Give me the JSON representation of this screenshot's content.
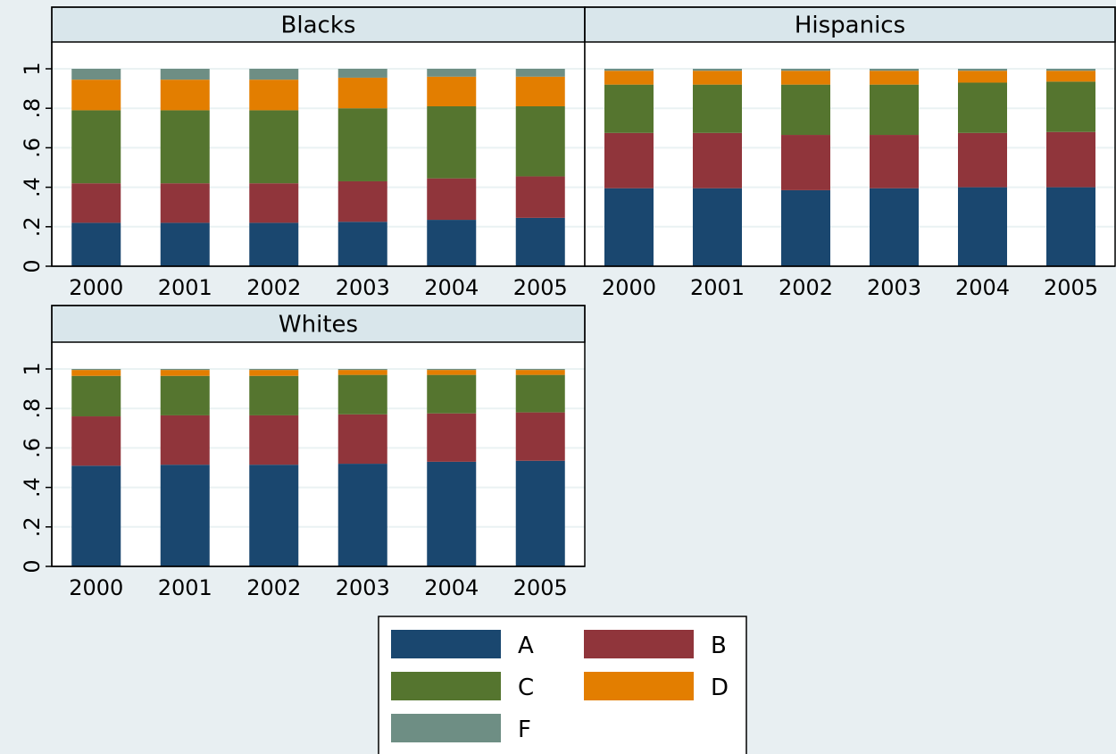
{
  "chart_data": [
    {
      "type": "bar",
      "stacked": true,
      "title": "Blacks",
      "categories": [
        "2000",
        "2001",
        "2002",
        "2003",
        "2004",
        "2005"
      ],
      "ylim": [
        0,
        1
      ],
      "yticks": [
        "0",
        ".2",
        ".4",
        ".6",
        ".8",
        "1"
      ],
      "grid": true,
      "series": [
        {
          "name": "A",
          "values": [
            0.22,
            0.22,
            0.22,
            0.225,
            0.235,
            0.245
          ]
        },
        {
          "name": "B",
          "values": [
            0.2,
            0.2,
            0.2,
            0.205,
            0.21,
            0.21
          ]
        },
        {
          "name": "C",
          "values": [
            0.37,
            0.37,
            0.37,
            0.37,
            0.365,
            0.355
          ]
        },
        {
          "name": "D",
          "values": [
            0.155,
            0.155,
            0.155,
            0.155,
            0.15,
            0.15
          ]
        },
        {
          "name": "F",
          "values": [
            0.055,
            0.055,
            0.055,
            0.045,
            0.04,
            0.04
          ]
        }
      ]
    },
    {
      "type": "bar",
      "stacked": true,
      "title": "Hispanics",
      "categories": [
        "2000",
        "2001",
        "2002",
        "2003",
        "2004",
        "2005"
      ],
      "ylim": [
        0,
        1
      ],
      "yticks": [
        "0",
        ".2",
        ".4",
        ".6",
        ".8",
        "1"
      ],
      "grid": true,
      "series": [
        {
          "name": "A",
          "values": [
            0.395,
            0.395,
            0.385,
            0.395,
            0.4,
            0.4
          ]
        },
        {
          "name": "B",
          "values": [
            0.28,
            0.28,
            0.28,
            0.27,
            0.275,
            0.28
          ]
        },
        {
          "name": "C",
          "values": [
            0.245,
            0.245,
            0.255,
            0.255,
            0.255,
            0.255
          ]
        },
        {
          "name": "D",
          "values": [
            0.07,
            0.07,
            0.07,
            0.07,
            0.06,
            0.055
          ]
        },
        {
          "name": "F",
          "values": [
            0.01,
            0.01,
            0.01,
            0.01,
            0.01,
            0.01
          ]
        }
      ]
    },
    {
      "type": "bar",
      "stacked": true,
      "title": "Whites",
      "categories": [
        "2000",
        "2001",
        "2002",
        "2003",
        "2004",
        "2005"
      ],
      "ylim": [
        0,
        1
      ],
      "yticks": [
        "0",
        ".2",
        ".4",
        ".6",
        ".8",
        "1"
      ],
      "grid": true,
      "series": [
        {
          "name": "A",
          "values": [
            0.51,
            0.515,
            0.515,
            0.52,
            0.53,
            0.535
          ]
        },
        {
          "name": "B",
          "values": [
            0.25,
            0.25,
            0.25,
            0.25,
            0.245,
            0.245
          ]
        },
        {
          "name": "C",
          "values": [
            0.205,
            0.2,
            0.2,
            0.2,
            0.195,
            0.19
          ]
        },
        {
          "name": "D",
          "values": [
            0.03,
            0.03,
            0.03,
            0.025,
            0.025,
            0.025
          ]
        },
        {
          "name": "F",
          "values": [
            0.005,
            0.005,
            0.005,
            0.005,
            0.005,
            0.005
          ]
        }
      ]
    }
  ],
  "legend": {
    "placement": "bottom-center",
    "items": [
      {
        "label": "A",
        "color": "#1a476f"
      },
      {
        "label": "B",
        "color": "#90353b"
      },
      {
        "label": "C",
        "color": "#55752f"
      },
      {
        "label": "D",
        "color": "#e37e00"
      },
      {
        "label": "F",
        "color": "#6e8e84"
      }
    ]
  },
  "colors": {
    "background": "#e8eff2",
    "plot_area": "#ffffff",
    "title_strip": "#d9e6eb",
    "grid": "#eaf2f3",
    "axis": "#000000"
  }
}
